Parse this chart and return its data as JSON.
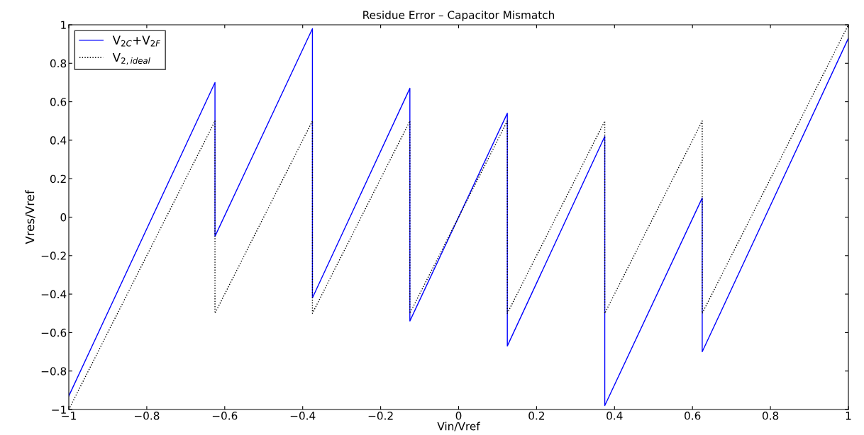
{
  "chart_data": {
    "type": "line",
    "title": "Residue Error – Capacitor Mismatch",
    "xlabel": "Vin/Vref",
    "ylabel": "Vres/Vref",
    "series": [
      {
        "name": "V$_{2C}$+V$_{2F}$",
        "color": "#0000ff",
        "line_style": "solid",
        "x": [
          -1,
          -0.625,
          -0.625,
          -0.375,
          -0.375,
          -0.125,
          -0.125,
          0.125,
          0.125,
          0.375,
          0.375,
          0.625,
          0.625,
          1
        ],
        "values": [
          -0.93,
          0.7,
          -0.1,
          0.98,
          -0.42,
          0.67,
          -0.54,
          0.54,
          -0.67,
          0.42,
          -0.98,
          0.1,
          -0.7,
          0.93
        ]
      },
      {
        "name": "V$_{2,ideal}$",
        "color": "#000000",
        "line_style": "dotted",
        "x": [
          -1,
          -0.625,
          -0.625,
          -0.375,
          -0.375,
          -0.125,
          -0.125,
          0.125,
          0.125,
          0.375,
          0.375,
          0.625,
          0.625,
          1
        ],
        "values": [
          -1,
          0.5,
          -0.5,
          0.5,
          -0.5,
          0.5,
          -0.5,
          0.5,
          -0.5,
          0.5,
          -0.5,
          0.5,
          -0.5,
          1
        ]
      }
    ],
    "xlim": [
      -1,
      1
    ],
    "ylim": [
      -1,
      1
    ],
    "xticks": [
      {
        "value": -1,
        "label": "−1"
      },
      {
        "value": -0.8,
        "label": "−0.8"
      },
      {
        "value": -0.6,
        "label": "−0.6"
      },
      {
        "value": -0.4,
        "label": "−0.4"
      },
      {
        "value": -0.2,
        "label": "−0.2"
      },
      0,
      0.2,
      0.4,
      0.6,
      0.8,
      1
    ],
    "yticks": [
      {
        "value": -1,
        "label": "−1"
      },
      {
        "value": -0.8,
        "label": "−0.8"
      },
      {
        "value": -0.6,
        "label": "−0.6"
      },
      {
        "value": -0.4,
        "label": "−0.4"
      },
      {
        "value": -0.2,
        "label": "−0.2"
      },
      0,
      0.2,
      0.4,
      0.6,
      0.8,
      1
    ],
    "grid": false,
    "legend": "top left"
  }
}
